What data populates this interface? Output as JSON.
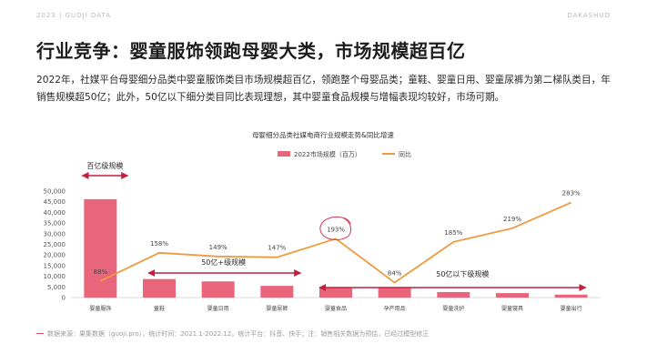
{
  "header": {
    "left": "2023 | GUOJI DATA",
    "right": "DAKASHUO"
  },
  "title": "行业竞争：婴童服饰领跑母婴大类，市场规模超百亿",
  "summary": "2022年，社媒平台母婴细分品类中婴童服饰类目市场规模超百亿，领跑整个母婴品类；童鞋、婴童日用、婴童尿裤为第二梯队类目，年销售规模超50亿；此外，50亿以下细分类目同比表现理想，其中婴童食品规模与增幅表现均较好，市场可期。",
  "source": "数据来源：果集数据（guoji.pro），统计时间：2021.1-2022.12，统计平台：抖音、快手；注：销售相关数据为预估，已经过模型修正",
  "colors": {
    "bar": "#e8657c",
    "line": "#ef9a3e",
    "arrow": "#c61e3c",
    "circle": "#d04a64"
  },
  "chart_data": {
    "type": "bar",
    "title": "母婴细分品类社媒电商行业规模走势&同比增速",
    "categories": [
      "婴童服饰",
      "童鞋",
      "婴童日用",
      "婴童尿裤",
      "婴童食品",
      "孕产用品",
      "婴童洗护",
      "婴童寝具",
      "婴童出行"
    ],
    "series": [
      {
        "name": "2022市场规模（百万）",
        "type": "bar",
        "values": [
          46200,
          8700,
          7600,
          5500,
          4700,
          4500,
          2600,
          2100,
          1400
        ]
      },
      {
        "name": "同比",
        "type": "line",
        "axis": "secondary",
        "values": [
          88,
          158,
          149,
          147,
          193,
          84,
          185,
          219,
          283
        ],
        "labels": [
          "88%",
          "158%",
          "149%",
          "147%",
          "193%",
          "84%",
          "185%",
          "219%",
          "283%"
        ]
      }
    ],
    "y_ticks": [
      "50,000",
      "45,000",
      "40,000",
      "35,000",
      "30,000",
      "25,000",
      "20,000",
      "15,000",
      "10,000",
      "5,000",
      "0"
    ],
    "ylim": [
      0,
      50000
    ],
    "y2lim": [
      40,
      300
    ],
    "annotations": [
      "百亿级规模",
      "50亿+级规模",
      "50亿以下级规模"
    ],
    "highlight": "婴童食品"
  }
}
